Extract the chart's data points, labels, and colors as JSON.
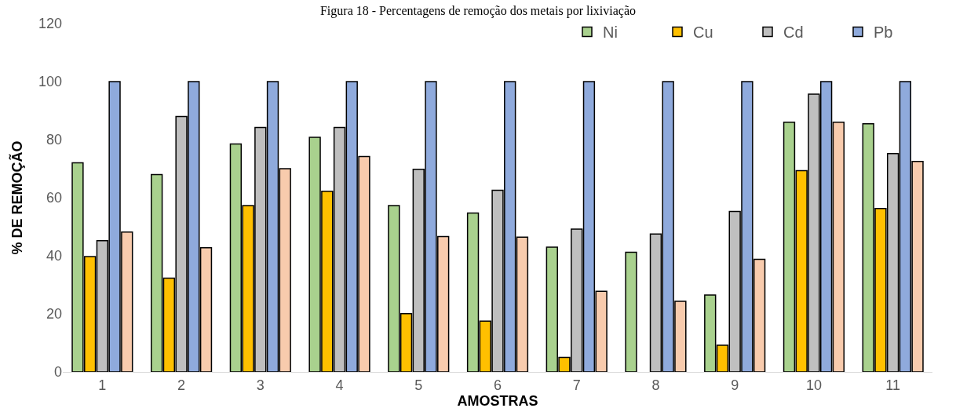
{
  "chart_data": {
    "type": "bar",
    "title": "Figura 18 - Percentagens de remoção dos metais por lixiviação",
    "xlabel": "AMOSTRAS",
    "ylabel": "% DE REMOÇÃO",
    "categories": [
      "1",
      "2",
      "3",
      "4",
      "5",
      "6",
      "7",
      "8",
      "9",
      "10",
      "11"
    ],
    "series": [
      {
        "name": "Ni",
        "color": "#a9d18e",
        "values": [
          72,
          68,
          78.5,
          80.8,
          57.3,
          54.7,
          43,
          41.2,
          26.5,
          86,
          85.5
        ]
      },
      {
        "name": "Cu",
        "color": "#ffc000",
        "values": [
          39.7,
          32.3,
          57.3,
          62.2,
          20.1,
          17.5,
          5,
          null,
          9.2,
          69.3,
          56.3
        ]
      },
      {
        "name": "Cd",
        "color": "#bfbfbf",
        "values": [
          45.2,
          88,
          84.2,
          84.2,
          69.8,
          62.6,
          49.2,
          47.5,
          55.3,
          95.7,
          75.2
        ]
      },
      {
        "name": "Pb",
        "color": "#8faadc",
        "values": [
          100,
          100,
          100,
          100,
          100,
          100,
          100,
          100,
          100,
          100,
          100
        ]
      },
      {
        "color": "#f8cbad",
        "values": [
          48.2,
          42.8,
          70,
          74.2,
          46.6,
          46.4,
          27.8,
          24.3,
          38.8,
          86,
          72.5
        ]
      }
    ],
    "ylim": [
      0,
      120
    ],
    "yticks": [
      0,
      20,
      40,
      60,
      80,
      100,
      120
    ],
    "legend": "top right"
  }
}
